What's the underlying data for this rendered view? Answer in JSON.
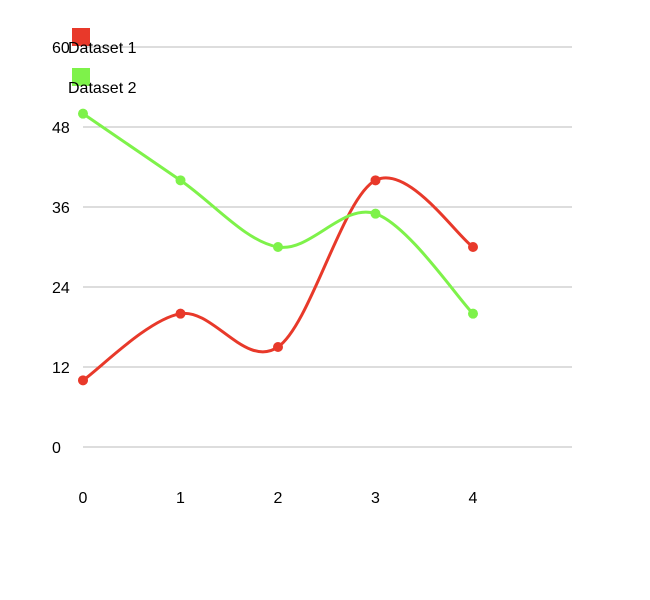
{
  "chart_data": {
    "type": "line",
    "x": [
      0,
      1,
      2,
      3,
      4
    ],
    "series": [
      {
        "name": "Dataset 1",
        "values": [
          10,
          20,
          15,
          40,
          30
        ],
        "color": "#e8392a"
      },
      {
        "name": "Dataset 2",
        "values": [
          50,
          40,
          30,
          35,
          20
        ],
        "color": "#7ef24a"
      }
    ],
    "yticks": [
      0,
      12,
      24,
      36,
      48,
      60
    ],
    "xticks": [
      0,
      1,
      2,
      3,
      4
    ],
    "ylim": [
      0,
      60
    ],
    "xlim": [
      0,
      5
    ],
    "grid": true,
    "smooth": true,
    "legend_position": "top-left",
    "grid_color": "#bbbbbb"
  }
}
